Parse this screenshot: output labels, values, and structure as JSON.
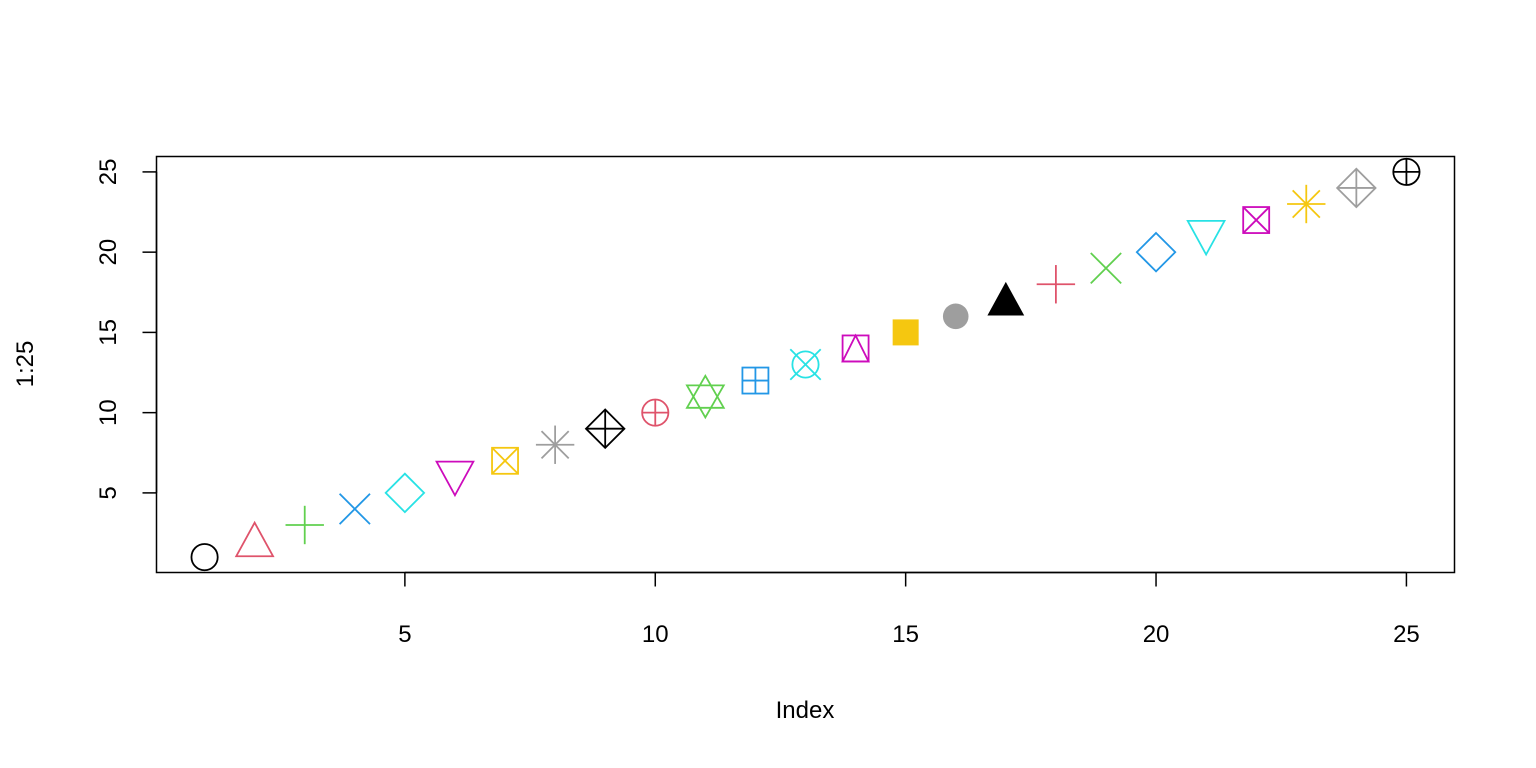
{
  "chart_data": {
    "type": "scatter",
    "title": "",
    "xlabel": "Index",
    "ylabel": "1:25",
    "xlim": [
      0.04,
      25.96
    ],
    "ylim": [
      0.04,
      25.96
    ],
    "xticks": [
      5,
      10,
      15,
      20,
      25
    ],
    "yticks": [
      5,
      10,
      15,
      20,
      25
    ],
    "xtick_labels": [
      "5",
      "10",
      "15",
      "20",
      "25"
    ],
    "ytick_labels": [
      "5",
      "10",
      "15",
      "20",
      "25"
    ],
    "grid": false,
    "legend": "none",
    "points": [
      {
        "x": 1,
        "y": 1,
        "pch": 1,
        "color": "#000000"
      },
      {
        "x": 2,
        "y": 2,
        "pch": 2,
        "color": "#DF536B"
      },
      {
        "x": 3,
        "y": 3,
        "pch": 3,
        "color": "#61D04F"
      },
      {
        "x": 4,
        "y": 4,
        "pch": 4,
        "color": "#2297E6"
      },
      {
        "x": 5,
        "y": 5,
        "pch": 5,
        "color": "#28E2E5"
      },
      {
        "x": 6,
        "y": 6,
        "pch": 6,
        "color": "#CD0BBC"
      },
      {
        "x": 7,
        "y": 7,
        "pch": 7,
        "color": "#F5C710"
      },
      {
        "x": 8,
        "y": 8,
        "pch": 8,
        "color": "#9E9E9E"
      },
      {
        "x": 9,
        "y": 9,
        "pch": 9,
        "color": "#000000"
      },
      {
        "x": 10,
        "y": 10,
        "pch": 10,
        "color": "#DF536B"
      },
      {
        "x": 11,
        "y": 11,
        "pch": 11,
        "color": "#61D04F"
      },
      {
        "x": 12,
        "y": 12,
        "pch": 12,
        "color": "#2297E6"
      },
      {
        "x": 13,
        "y": 13,
        "pch": 13,
        "color": "#28E2E5"
      },
      {
        "x": 14,
        "y": 14,
        "pch": 14,
        "color": "#CD0BBC"
      },
      {
        "x": 15,
        "y": 15,
        "pch": 15,
        "color": "#F5C710"
      },
      {
        "x": 16,
        "y": 16,
        "pch": 16,
        "color": "#9E9E9E"
      },
      {
        "x": 17,
        "y": 17,
        "pch": 17,
        "color": "#000000"
      },
      {
        "x": 18,
        "y": 18,
        "pch": 18,
        "color": "#DF536B"
      },
      {
        "x": 19,
        "y": 19,
        "pch": 19,
        "color": "#61D04F"
      },
      {
        "x": 20,
        "y": 20,
        "pch": 20,
        "color": "#2297E6"
      },
      {
        "x": 21,
        "y": 21,
        "pch": 21,
        "color": "#28E2E5"
      },
      {
        "x": 22,
        "y": 22,
        "pch": 22,
        "color": "#CD0BBC"
      },
      {
        "x": 23,
        "y": 23,
        "pch": 23,
        "color": "#F5C710"
      },
      {
        "x": 24,
        "y": 24,
        "pch": 24,
        "color": "#9E9E9E"
      },
      {
        "x": 25,
        "y": 25,
        "pch": 25,
        "color": "#000000"
      }
    ]
  }
}
